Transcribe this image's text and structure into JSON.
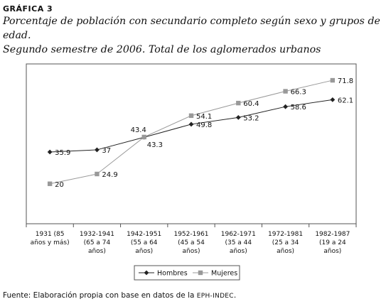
{
  "figure": {
    "heading": "GRÁFICA 3",
    "title_line1": "Porcentaje de población con secundario completo según sexo y grupos de edad.",
    "title_line2": "Segundo semestre de 2006. Total de los aglomerados urbanos",
    "source_prefix": "Fuente: Elaboración propia con base en datos de la ",
    "source_org": "EPH-INDEC",
    "source_suffix": "."
  },
  "chart_data": {
    "type": "line",
    "categories": [
      [
        "1931 (85",
        "años y más)"
      ],
      [
        "1932-1941",
        "(65 a 74",
        "años)"
      ],
      [
        "1942-1951",
        "(55 a 64",
        "años)"
      ],
      [
        "1952-1961",
        "(45 a 54",
        "años)"
      ],
      [
        "1962-1971",
        "(35 a 44",
        "años)"
      ],
      [
        "1972-1981",
        "(25 a 34",
        "años)"
      ],
      [
        "1982-1987",
        "(19 a 24",
        "años)"
      ]
    ],
    "series": [
      {
        "name": "Hombres",
        "values": [
          35.9,
          37,
          43.3,
          49.8,
          53.2,
          58.6,
          62.1
        ],
        "color": "#222222",
        "marker": "diamond",
        "label_pos": [
          "r",
          "r",
          "b",
          "r",
          "r",
          "r",
          "r"
        ]
      },
      {
        "name": "Mujeres",
        "values": [
          20,
          24.9,
          43.4,
          54.1,
          60.4,
          66.3,
          71.8
        ],
        "color": "#999999",
        "marker": "square",
        "label_pos": [
          "r",
          "r",
          "t",
          "r",
          "r",
          "r",
          "r"
        ]
      }
    ],
    "ylim": [
      0,
      80
    ],
    "grid": false,
    "legend": "bottom"
  }
}
